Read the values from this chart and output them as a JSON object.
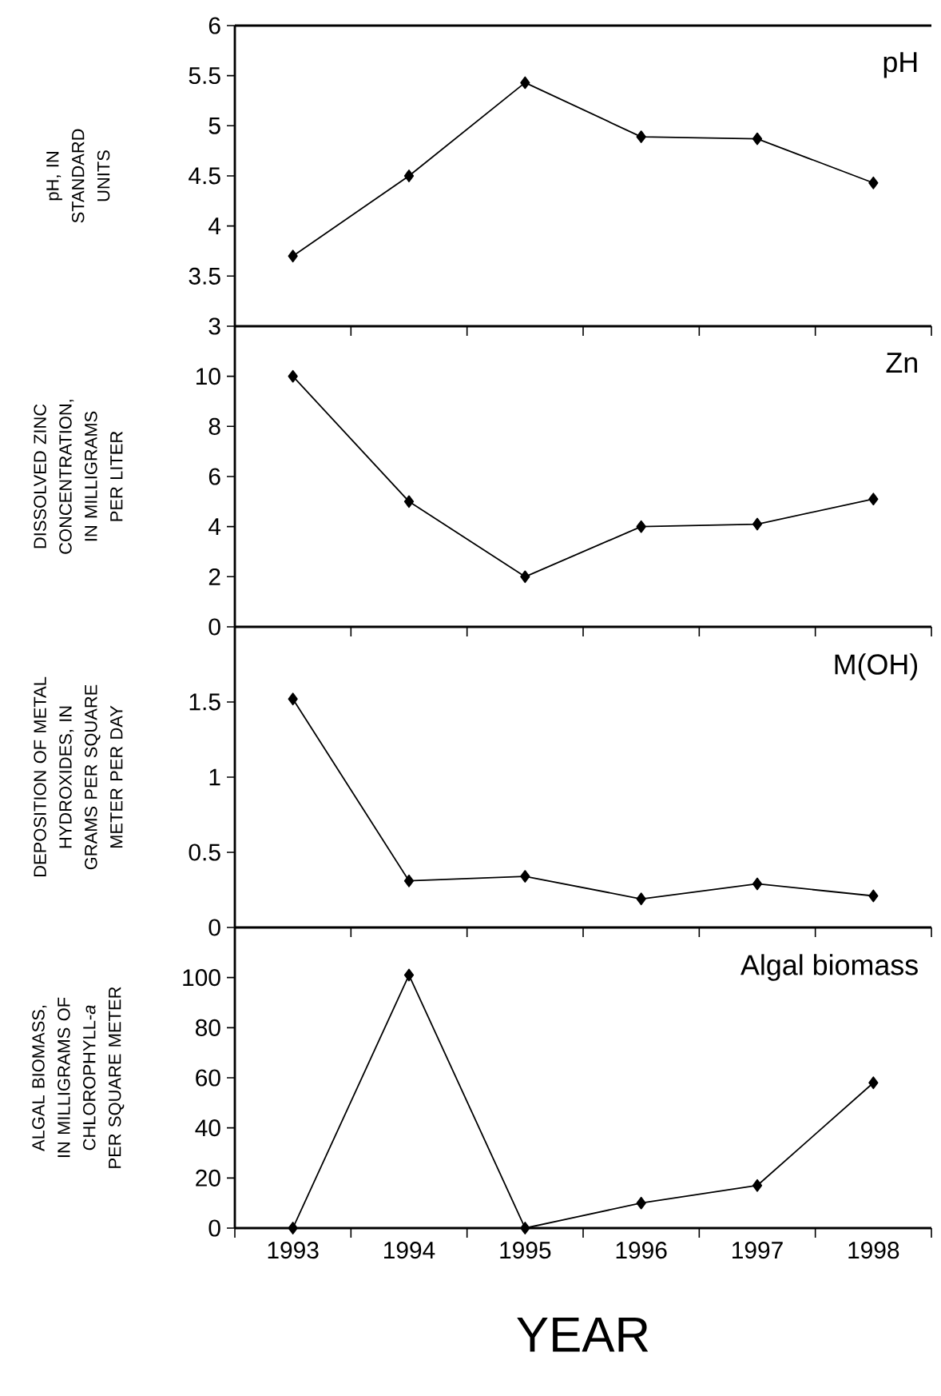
{
  "chart_data": [
    {
      "type": "line",
      "title": "pH",
      "ylabel": "pH, IN STANDARD UNITS",
      "categories": [
        "1993",
        "1994",
        "1995",
        "1996",
        "1997",
        "1998"
      ],
      "values": [
        3.7,
        4.5,
        5.43,
        4.89,
        4.87,
        4.43
      ],
      "color": "#000000",
      "marker": "diamond",
      "line_style": "solid",
      "ylim": [
        3,
        6
      ],
      "yticks": [
        3,
        3.5,
        4,
        4.5,
        5,
        5.5,
        6
      ],
      "tick_labels": "y"
    },
    {
      "type": "line",
      "title": "Zn",
      "ylabel": "DISSOLVED ZINC CONCENTRATION, IN MILLIGRAMS PER LITER",
      "categories": [
        "1993",
        "1994",
        "1995",
        "1996",
        "1997",
        "1998"
      ],
      "values": [
        10,
        5,
        2,
        4,
        4.1,
        5.1
      ],
      "color": "#000000",
      "marker": "diamond",
      "line_style": "solid",
      "ylim": [
        0,
        12
      ],
      "yticks": [
        0,
        2,
        4,
        6,
        8,
        10
      ],
      "tick_labels": "y"
    },
    {
      "type": "line",
      "title": "M(OH)",
      "ylabel": "DEPOSITION OF METAL HYDROXIDES, IN GRAMS PER SQUARE METER PER DAY",
      "categories": [
        "1993",
        "1994",
        "1995",
        "1996",
        "1997",
        "1998"
      ],
      "values": [
        1.52,
        0.31,
        0.34,
        0.19,
        0.29,
        0.21
      ],
      "color": "#000000",
      "marker": "diamond",
      "line_style": "solid",
      "ylim": [
        0,
        2
      ],
      "yticks": [
        0,
        0.5,
        1,
        1.5
      ],
      "tick_labels": "y"
    },
    {
      "type": "line",
      "title": "Algal biomass",
      "ylabel": "ALGAL BIOMASS, IN MILLIGRAMS OF CHLOROPHYLL-*a* PER SQUARE METER",
      "xlabel": "YEAR",
      "categories": [
        "1993",
        "1994",
        "1995",
        "1996",
        "1997",
        "1998"
      ],
      "values": [
        0,
        101,
        0,
        10,
        17,
        58
      ],
      "color": "#000000",
      "marker": "diamond",
      "line_style": "solid",
      "ylim": [
        0,
        120
      ],
      "yticks": [
        0,
        20,
        40,
        60,
        80,
        100
      ]
    }
  ]
}
